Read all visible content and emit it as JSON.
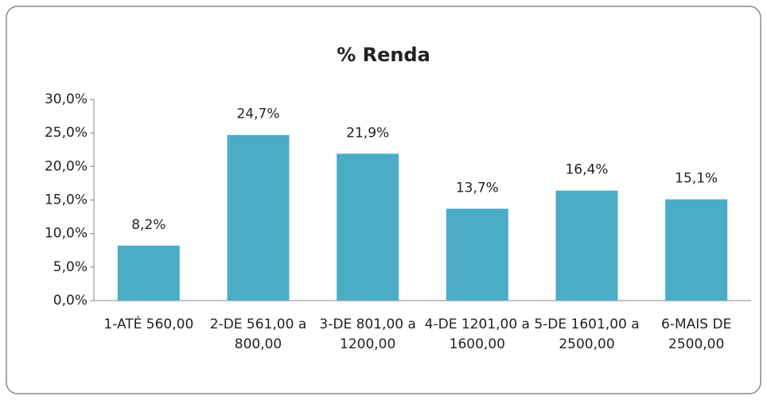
{
  "chart_data": {
    "type": "bar",
    "title": "% Renda",
    "categories": [
      "1-ATÉ 560,00",
      "2-DE 561,00 a 800,00",
      "3-DE 801,00 a 1200,00",
      "4-DE 1201,00 a 1600,00",
      "5-DE 1601,00 a 2500,00",
      "6-MAIS DE 2500,00"
    ],
    "values": [
      8.2,
      24.7,
      21.9,
      13.7,
      16.4,
      15.1
    ],
    "value_labels": [
      "8,2%",
      "24,7%",
      "21,9%",
      "13,7%",
      "16,4%",
      "15,1%"
    ],
    "color": "#4bacc6",
    "ylim": [
      0,
      30
    ],
    "yticks": [
      {
        "value": 0,
        "label": "0,0%"
      },
      {
        "value": 5,
        "label": "5,0%"
      },
      {
        "value": 10,
        "label": "10,0%"
      },
      {
        "value": 15,
        "label": "15,0%"
      },
      {
        "value": 20,
        "label": "20,0%"
      },
      {
        "value": 25,
        "label": "25,0%"
      },
      {
        "value": 30,
        "label": "30,0%"
      }
    ],
    "grid": false
  }
}
